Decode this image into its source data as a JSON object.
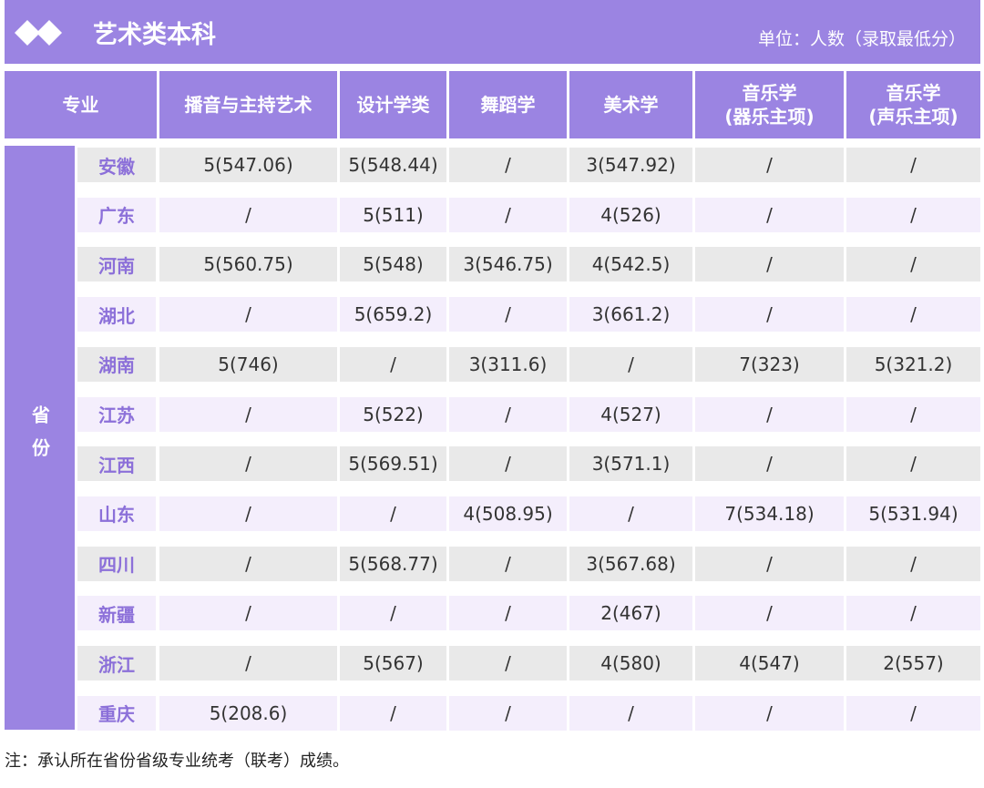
{
  "header": {
    "title": "艺术类本科",
    "unit": "单位：人数（录取最低分）"
  },
  "table": {
    "corner": "专业",
    "row_group": "省份",
    "columns": [
      "播音与主持艺术",
      "设计学类",
      "舞蹈学",
      "美术学",
      "音乐学\n(器乐主项)",
      "音乐学\n(声乐主项)"
    ],
    "rows": [
      {
        "province": "安徽",
        "cells": [
          "5(547.06)",
          "5(548.44)",
          "/",
          "3(547.92)",
          "/",
          "/"
        ]
      },
      {
        "province": "广东",
        "cells": [
          "/",
          "5(511)",
          "/",
          "4(526)",
          "/",
          "/"
        ]
      },
      {
        "province": "河南",
        "cells": [
          "5(560.75)",
          "5(548)",
          "3(546.75)",
          "4(542.5)",
          "/",
          "/"
        ]
      },
      {
        "province": "湖北",
        "cells": [
          "/",
          "5(659.2)",
          "/",
          "3(661.2)",
          "/",
          "/"
        ]
      },
      {
        "province": "湖南",
        "cells": [
          "5(746)",
          "/",
          "3(311.6)",
          "/",
          "7(323)",
          "5(321.2)"
        ]
      },
      {
        "province": "江苏",
        "cells": [
          "/",
          "5(522)",
          "/",
          "4(527)",
          "/",
          "/"
        ]
      },
      {
        "province": "江西",
        "cells": [
          "/",
          "5(569.51)",
          "/",
          "3(571.1)",
          "/",
          "/"
        ]
      },
      {
        "province": "山东",
        "cells": [
          "/",
          "/",
          "4(508.95)",
          "/",
          "7(534.18)",
          "5(531.94)"
        ]
      },
      {
        "province": "四川",
        "cells": [
          "/",
          "5(568.77)",
          "/",
          "3(567.68)",
          "/",
          "/"
        ]
      },
      {
        "province": "新疆",
        "cells": [
          "/",
          "/",
          "/",
          "2(467)",
          "/",
          "/"
        ]
      },
      {
        "province": "浙江",
        "cells": [
          "/",
          "5(567)",
          "/",
          "4(580)",
          "4(547)",
          "2(557)"
        ]
      },
      {
        "province": "重庆",
        "cells": [
          "5(208.6)",
          "/",
          "/",
          "/",
          "/",
          "/"
        ]
      }
    ]
  },
  "footer": {
    "note": "注：承认所在省份省级专业统考（联考）成绩。"
  }
}
